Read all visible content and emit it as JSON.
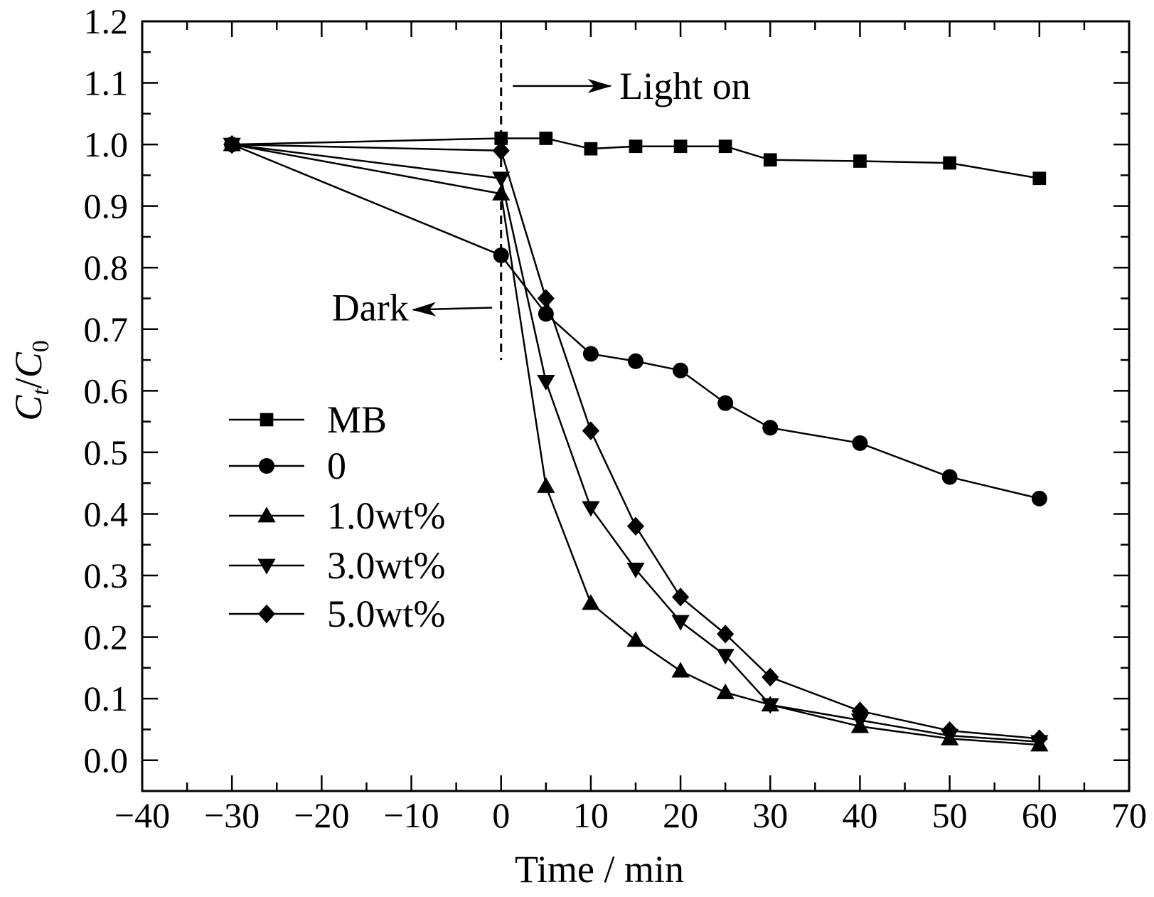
{
  "chart_data": {
    "type": "line",
    "xlabel": "Time / min",
    "ylabel_main": "C",
    "ylabel_sub_num": "t",
    "ylabel_sep": "/",
    "ylabel_sub_den": "0",
    "xlim": [
      -40,
      70
    ],
    "ylim": [
      -0.05,
      1.2
    ],
    "xticks": [
      -40,
      -30,
      -20,
      -10,
      0,
      10,
      20,
      30,
      40,
      50,
      60,
      70
    ],
    "xtick_labels": [
      "−40",
      "−30",
      "−20",
      "−10",
      "0",
      "10",
      "20",
      "30",
      "40",
      "50",
      "60",
      "70"
    ],
    "yticks": [
      0.0,
      0.1,
      0.2,
      0.3,
      0.4,
      0.5,
      0.6,
      0.7,
      0.8,
      0.9,
      1.0,
      1.1,
      1.2
    ],
    "ytick_labels": [
      "0.0",
      "0.1",
      "0.2",
      "0.3",
      "0.4",
      "0.5",
      "0.6",
      "0.7",
      "0.8",
      "0.9",
      "1.0",
      "1.1",
      "1.2"
    ],
    "x": [
      -30,
      0,
      5,
      10,
      15,
      20,
      25,
      30,
      40,
      50,
      60
    ],
    "series": [
      {
        "name": "MB",
        "marker": "square",
        "values": [
          1.0,
          1.01,
          1.01,
          0.993,
          0.997,
          0.997,
          0.997,
          0.975,
          0.973,
          0.97,
          0.945
        ]
      },
      {
        "name": "0",
        "marker": "circle",
        "values": [
          1.0,
          0.82,
          0.725,
          0.66,
          0.648,
          0.633,
          0.58,
          0.54,
          0.515,
          0.46,
          0.425
        ]
      },
      {
        "name": "1.0wt%",
        "marker": "triangle-up",
        "values": [
          1.0,
          0.92,
          0.445,
          0.255,
          0.195,
          0.145,
          0.11,
          0.09,
          0.055,
          0.035,
          0.025
        ]
      },
      {
        "name": "3.0wt%",
        "marker": "triangle-down",
        "values": [
          1.0,
          0.945,
          0.615,
          0.41,
          0.31,
          0.225,
          0.17,
          0.09,
          0.065,
          0.04,
          0.03
        ]
      },
      {
        "name": "5.0wt%",
        "marker": "diamond",
        "values": [
          1.0,
          0.99,
          0.75,
          0.535,
          0.38,
          0.265,
          0.205,
          0.135,
          0.08,
          0.048,
          0.035
        ]
      }
    ],
    "annotations": [
      {
        "text": "Light on",
        "arrow": "right",
        "x": 1,
        "y": 1.095
      },
      {
        "text": "Dark",
        "arrow": "left",
        "x": -1,
        "y": 0.735
      }
    ],
    "divider_x": 0,
    "legend_position": "left-middle",
    "grid": false
  }
}
